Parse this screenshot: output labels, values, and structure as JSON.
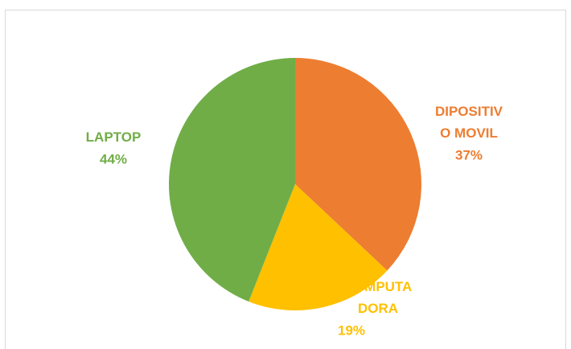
{
  "chart_data": {
    "type": "pie",
    "categories": [
      "DIPOSITIVO MOVIL",
      "COMPUTADORA",
      "LAPTOP"
    ],
    "values": [
      37,
      19,
      44
    ],
    "value_labels": [
      "37%",
      "19%",
      "44%"
    ],
    "colors": [
      "#ED7D31",
      "#FFC000",
      "#70AD47"
    ]
  }
}
